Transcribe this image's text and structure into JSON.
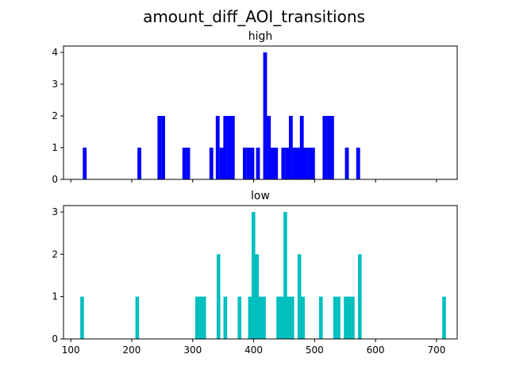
{
  "figure": {
    "title": "amount_diff_AOI_transitions"
  },
  "chart_data": [
    {
      "type": "bar",
      "title": "high",
      "xlabel": "",
      "ylabel": "",
      "color": "#0000ff",
      "xlim": [
        88,
        734
      ],
      "ylim": [
        0,
        4.2
      ],
      "yticks": [
        0,
        1,
        2,
        3,
        4
      ],
      "xticks": [
        100,
        200,
        300,
        400,
        500,
        600,
        700
      ],
      "show_x_tick_labels": false,
      "grid": false,
      "bin_width": 6.3,
      "bins": [
        {
          "x": 122.8,
          "value": 1
        },
        {
          "x": 212.5,
          "value": 1
        },
        {
          "x": 245.4,
          "value": 2
        },
        {
          "x": 251.5,
          "value": 2
        },
        {
          "x": 286.2,
          "value": 1
        },
        {
          "x": 292.5,
          "value": 1
        },
        {
          "x": 330.6,
          "value": 1
        },
        {
          "x": 341.0,
          "value": 2
        },
        {
          "x": 347.3,
          "value": 1
        },
        {
          "x": 353.4,
          "value": 2
        },
        {
          "x": 359.6,
          "value": 2
        },
        {
          "x": 365.8,
          "value": 2
        },
        {
          "x": 385.5,
          "value": 1
        },
        {
          "x": 391.7,
          "value": 1
        },
        {
          "x": 397.9,
          "value": 1
        },
        {
          "x": 407.1,
          "value": 1
        },
        {
          "x": 418.8,
          "value": 4
        },
        {
          "x": 425.0,
          "value": 2
        },
        {
          "x": 430.6,
          "value": 1
        },
        {
          "x": 436.7,
          "value": 1
        },
        {
          "x": 448.6,
          "value": 1
        },
        {
          "x": 454.8,
          "value": 1
        },
        {
          "x": 461.0,
          "value": 2
        },
        {
          "x": 467.1,
          "value": 1
        },
        {
          "x": 473.2,
          "value": 1
        },
        {
          "x": 479.0,
          "value": 2
        },
        {
          "x": 485.1,
          "value": 1
        },
        {
          "x": 491.2,
          "value": 1
        },
        {
          "x": 497.4,
          "value": 1
        },
        {
          "x": 516.3,
          "value": 2
        },
        {
          "x": 522.5,
          "value": 2
        },
        {
          "x": 528.7,
          "value": 2
        },
        {
          "x": 553.0,
          "value": 1
        },
        {
          "x": 571.5,
          "value": 1
        }
      ]
    },
    {
      "type": "bar",
      "title": "low",
      "xlabel": "",
      "ylabel": "",
      "color": "#00bfbf",
      "xlim": [
        88,
        734
      ],
      "ylim": [
        0,
        3.15
      ],
      "yticks": [
        0,
        1,
        2,
        3
      ],
      "xticks": [
        100,
        200,
        300,
        400,
        500,
        600,
        700
      ],
      "show_x_tick_labels": true,
      "grid": false,
      "bin_width": 6.0,
      "bins": [
        {
          "x": 118.5,
          "value": 1
        },
        {
          "x": 209.0,
          "value": 1
        },
        {
          "x": 307.2,
          "value": 1
        },
        {
          "x": 313.0,
          "value": 1
        },
        {
          "x": 318.8,
          "value": 1
        },
        {
          "x": 342.3,
          "value": 2
        },
        {
          "x": 353.5,
          "value": 1
        },
        {
          "x": 376.8,
          "value": 1
        },
        {
          "x": 393.9,
          "value": 1
        },
        {
          "x": 399.7,
          "value": 3
        },
        {
          "x": 405.5,
          "value": 2
        },
        {
          "x": 411.2,
          "value": 1
        },
        {
          "x": 417.0,
          "value": 1
        },
        {
          "x": 440.3,
          "value": 1
        },
        {
          "x": 446.1,
          "value": 1
        },
        {
          "x": 451.9,
          "value": 3
        },
        {
          "x": 457.7,
          "value": 1
        },
        {
          "x": 463.5,
          "value": 1
        },
        {
          "x": 475.1,
          "value": 2
        },
        {
          "x": 480.9,
          "value": 1
        },
        {
          "x": 510.4,
          "value": 1
        },
        {
          "x": 533.5,
          "value": 1
        },
        {
          "x": 539.3,
          "value": 1
        },
        {
          "x": 551.0,
          "value": 1
        },
        {
          "x": 556.8,
          "value": 1
        },
        {
          "x": 562.6,
          "value": 1
        },
        {
          "x": 574.2,
          "value": 2
        },
        {
          "x": 712.5,
          "value": 1
        }
      ]
    }
  ]
}
